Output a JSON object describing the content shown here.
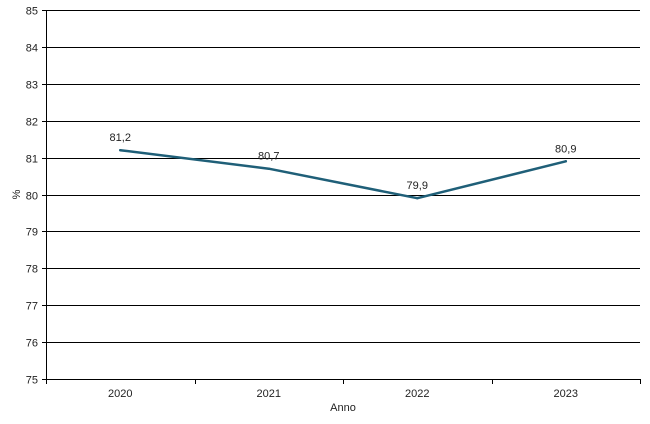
{
  "chart_data": {
    "type": "line",
    "title": "",
    "xlabel": "Anno",
    "ylabel": "%",
    "categories": [
      "2020",
      "2021",
      "2022",
      "2023"
    ],
    "series": [
      {
        "values": [
          81.2,
          80.7,
          79.9,
          80.9
        ]
      }
    ],
    "data_labels": [
      "81,2",
      "80,7",
      "79,9",
      "80,9"
    ],
    "ylim": [
      75,
      85
    ],
    "yticks": [
      "75",
      "76",
      "77",
      "78",
      "79",
      "80",
      "81",
      "82",
      "83",
      "84",
      "85"
    ],
    "grid": "horizontal",
    "legend": "none",
    "line_color": "#1f5f78",
    "grid_color": "#000000"
  }
}
